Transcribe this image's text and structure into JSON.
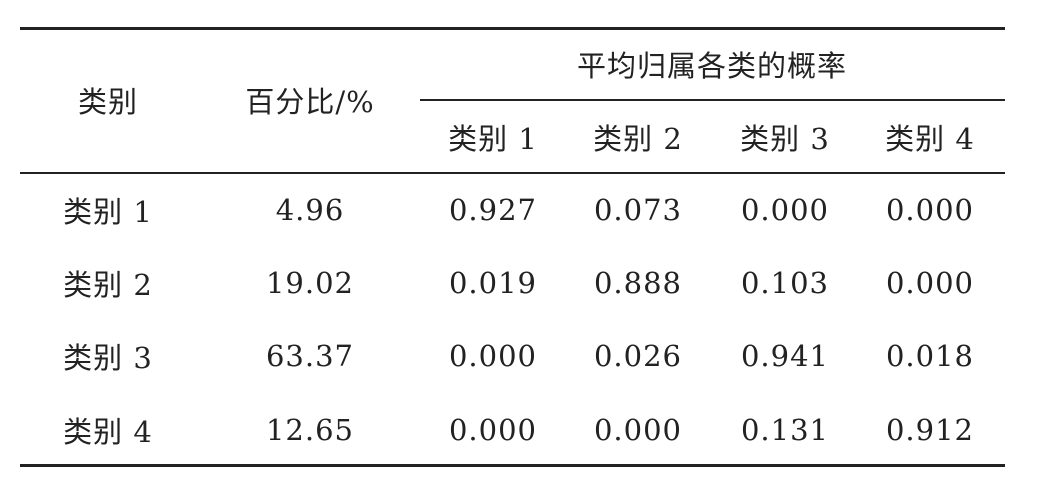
{
  "table": {
    "header": {
      "category": "类别",
      "percent": "百分比/%",
      "group": "平均归属各类的概率",
      "subheaders": [
        "类别 1",
        "类别 2",
        "类别 3",
        "类别 4"
      ]
    },
    "rows": [
      [
        "类别 1",
        "4.96",
        "0.927",
        "0.073",
        "0.000",
        "0.000"
      ],
      [
        "类别 2",
        "19.02",
        "0.019",
        "0.888",
        "0.103",
        "0.000"
      ],
      [
        "类别 3",
        "63.37",
        "0.000",
        "0.026",
        "0.941",
        "0.018"
      ],
      [
        "类别 4",
        "12.65",
        "0.000",
        "0.000",
        "0.131",
        "0.912"
      ]
    ]
  }
}
